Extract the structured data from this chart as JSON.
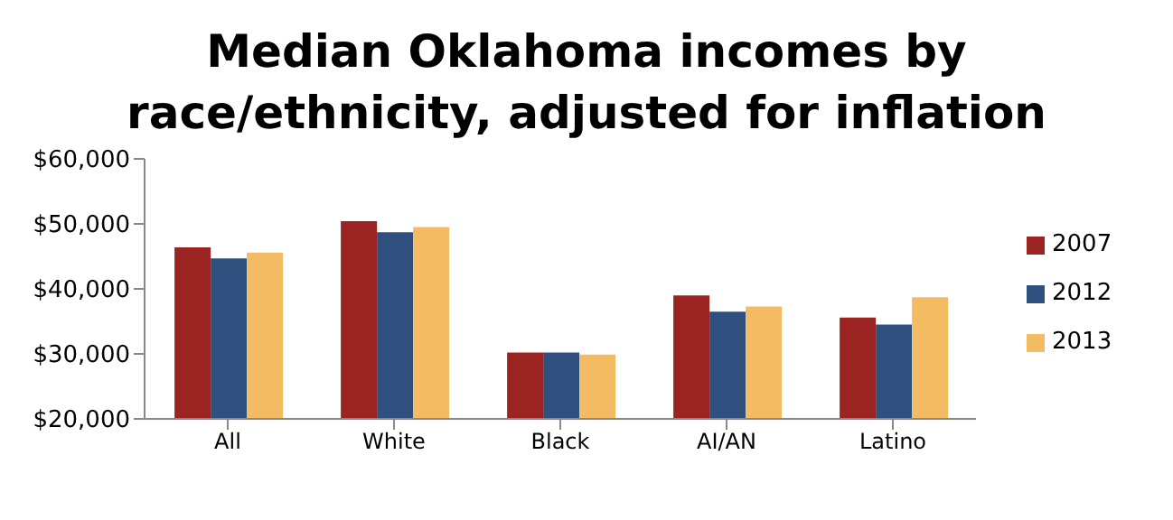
{
  "chart_data": {
    "type": "bar",
    "title": "Median Oklahoma incomes  by race/ethnicity, adjusted for inflation",
    "categories": [
      "All",
      "White",
      "Black",
      "AI/AN",
      "Latino"
    ],
    "series": [
      {
        "name": "2007",
        "color": "#9b2423",
        "values": [
          46400,
          50400,
          30200,
          39000,
          35600
        ]
      },
      {
        "name": "2012",
        "color": "#2f4f7f",
        "values": [
          44700,
          48700,
          30200,
          36500,
          34500
        ]
      },
      {
        "name": "2013",
        "color": "#f4bc62",
        "values": [
          45600,
          49500,
          29900,
          37300,
          38700
        ]
      }
    ],
    "ylim": [
      20000,
      60000
    ],
    "yticks": [
      {
        "value": 20000,
        "label": "$20,000"
      },
      {
        "value": 30000,
        "label": "$30,000"
      },
      {
        "value": 40000,
        "label": "$40,000"
      },
      {
        "value": 50000,
        "label": "$50,000"
      },
      {
        "value": 60000,
        "label": "$60,000"
      }
    ],
    "grid": false,
    "legend": "right"
  }
}
